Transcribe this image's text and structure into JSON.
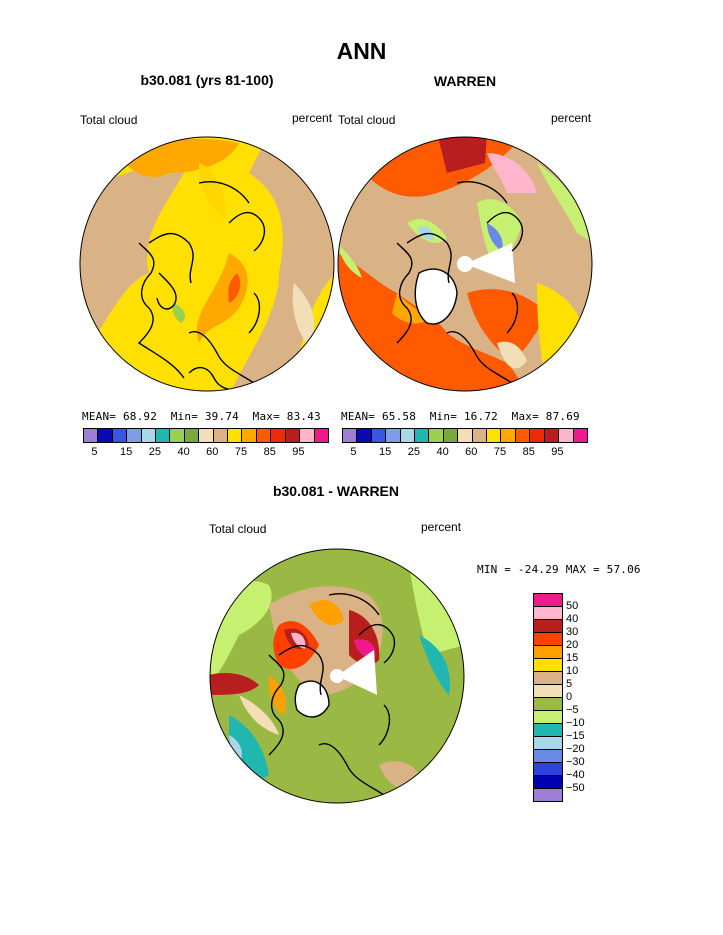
{
  "title": "ANN",
  "colors": {
    "bins": [
      "#9e7fd8",
      "#0a0ab4",
      "#3a56e0",
      "#7f9ce6",
      "#a8d8e8",
      "#22b6b0",
      "#9ad050",
      "#7aa83c",
      "#f2dfb7",
      "#d9b386",
      "#ffe000",
      "#ffa800",
      "#ff5a00",
      "#ec2a06",
      "#b81e1e",
      "#ffb6cc",
      "#ee1a8c"
    ],
    "diff": [
      "#ee1a8c",
      "#ffb6cc",
      "#b81e1e",
      "#ff4000",
      "#ffa000",
      "#ffe000",
      "#d9b386",
      "#f2dfb7",
      "#9ab944",
      "#c6f070",
      "#22b6b0",
      "#a8d8e8",
      "#6a88e6",
      "#2a45d8",
      "#0000b0",
      "#9e7fd8"
    ]
  },
  "panel_left": {
    "subtitle": "b30.081 (yrs 81-100)",
    "left_label": "Total cloud",
    "right_label": "percent",
    "mean_label": "MEAN=",
    "mean": "68.92",
    "min_label": "Min=",
    "min": "39.74",
    "max_label": "Max=",
    "max": "83.43"
  },
  "panel_right": {
    "subtitle": "WARREN",
    "left_label": "Total cloud",
    "right_label": "percent",
    "mean_label": "MEAN=",
    "mean": "65.58",
    "min_label": "Min=",
    "min": "16.72",
    "max_label": "Max=",
    "max": "87.69"
  },
  "colorbar_ticks": [
    "5",
    "15",
    "25",
    "40",
    "60",
    "75",
    "85",
    "95"
  ],
  "panel_diff": {
    "subtitle": "b30.081 - WARREN",
    "left_label": "Total cloud",
    "right_label": "percent",
    "minmax": "MIN = -24.29 MAX =  57.06",
    "ticks": [
      "50",
      "40",
      "30",
      "20",
      "15",
      "10",
      "5",
      "0",
      "−5",
      "−10",
      "−15",
      "−20",
      "−30",
      "−40",
      "−50"
    ]
  }
}
